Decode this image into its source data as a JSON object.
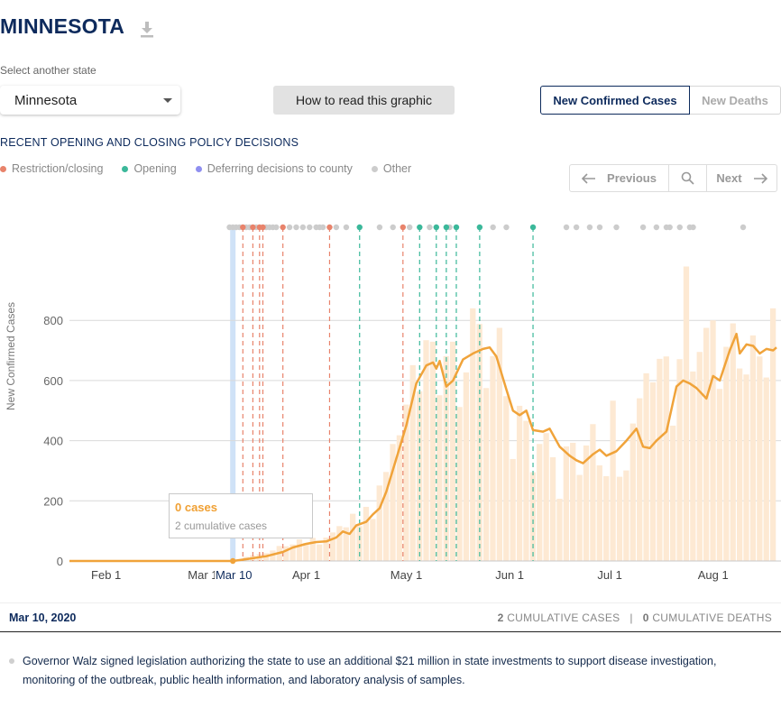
{
  "header": {
    "title": "MINNESOTA",
    "download_icon": "download-icon"
  },
  "state_selector": {
    "label": "Select another state",
    "value": "Minnesota"
  },
  "how_button": {
    "label": "How to read this graphic"
  },
  "toggle": {
    "active": "New Confirmed Cases",
    "inactive": "New Deaths"
  },
  "policy": {
    "heading": "RECENT OPENING AND CLOSING POLICY DECISIONS",
    "legend": [
      {
        "label": "Restriction/closing",
        "color": "#e8836b"
      },
      {
        "label": "Opening",
        "color": "#3bb89a"
      },
      {
        "label": "Deferring decisions to county",
        "color": "#8f8ff0"
      },
      {
        "label": "Other",
        "color": "#cccccc"
      }
    ]
  },
  "pager": {
    "previous": "Previous",
    "next": "Next",
    "icons": [
      "arrow-left-icon",
      "search-icon",
      "arrow-right-icon"
    ]
  },
  "chart_data": {
    "type": "bar",
    "ylabel": "New Confirmed Cases",
    "ylim": [
      0,
      1000
    ],
    "yticks": [
      0,
      200,
      400,
      600,
      800
    ],
    "x_start": "2020-01-21",
    "x_end": "2020-08-20",
    "xticks": [
      {
        "date": "2020-02-01",
        "label": "Feb 1"
      },
      {
        "date": "2020-03-01",
        "label": "Mar 1"
      },
      {
        "date": "2020-04-01",
        "label": "Apr 1"
      },
      {
        "date": "2020-05-01",
        "label": "May 1"
      },
      {
        "date": "2020-06-01",
        "label": "Jun 1"
      },
      {
        "date": "2020-07-01",
        "label": "Jul 1"
      },
      {
        "date": "2020-08-01",
        "label": "Aug 1"
      }
    ],
    "selected": {
      "date": "2020-03-10",
      "label": "Mar 10"
    },
    "colors": {
      "bars": "#fde9d3",
      "line": "#f0a33a",
      "selected_band": "#cfe2f7",
      "grid": "#d9d9d9"
    },
    "daily_cases": [
      {
        "d": "2020-03-06",
        "v": 1
      },
      {
        "d": "2020-03-08",
        "v": 1
      },
      {
        "d": "2020-03-10",
        "v": 0
      },
      {
        "d": "2020-03-12",
        "v": 5
      },
      {
        "d": "2020-03-14",
        "v": 14
      },
      {
        "d": "2020-03-16",
        "v": 19
      },
      {
        "d": "2020-03-18",
        "v": 23
      },
      {
        "d": "2020-03-20",
        "v": 26
      },
      {
        "d": "2020-03-22",
        "v": 35
      },
      {
        "d": "2020-03-24",
        "v": 50
      },
      {
        "d": "2020-03-26",
        "v": 49
      },
      {
        "d": "2020-03-28",
        "v": 55
      },
      {
        "d": "2020-03-30",
        "v": 72
      },
      {
        "d": "2020-04-01",
        "v": 60
      },
      {
        "d": "2020-04-03",
        "v": 77
      },
      {
        "d": "2020-04-05",
        "v": 55
      },
      {
        "d": "2020-04-07",
        "v": 78
      },
      {
        "d": "2020-04-09",
        "v": 95
      },
      {
        "d": "2020-04-11",
        "v": 116
      },
      {
        "d": "2020-04-13",
        "v": 112
      },
      {
        "d": "2020-04-15",
        "v": 157
      },
      {
        "d": "2020-04-17",
        "v": 116
      },
      {
        "d": "2020-04-19",
        "v": 180
      },
      {
        "d": "2020-04-21",
        "v": 140
      },
      {
        "d": "2020-04-23",
        "v": 251
      },
      {
        "d": "2020-04-25",
        "v": 296
      },
      {
        "d": "2020-04-27",
        "v": 389
      },
      {
        "d": "2020-04-29",
        "v": 418
      },
      {
        "d": "2020-05-01",
        "v": 520
      },
      {
        "d": "2020-05-03",
        "v": 651
      },
      {
        "d": "2020-05-05",
        "v": 564
      },
      {
        "d": "2020-05-07",
        "v": 734
      },
      {
        "d": "2020-05-09",
        "v": 729
      },
      {
        "d": "2020-05-11",
        "v": 551
      },
      {
        "d": "2020-05-13",
        "v": 681
      },
      {
        "d": "2020-05-15",
        "v": 729
      },
      {
        "d": "2020-05-17",
        "v": 512
      },
      {
        "d": "2020-05-19",
        "v": 627
      },
      {
        "d": "2020-05-21",
        "v": 840
      },
      {
        "d": "2020-05-23",
        "v": 788
      },
      {
        "d": "2020-05-25",
        "v": 575
      },
      {
        "d": "2020-05-27",
        "v": 681
      },
      {
        "d": "2020-05-29",
        "v": 775
      },
      {
        "d": "2020-05-31",
        "v": 548
      },
      {
        "d": "2020-06-02",
        "v": 339
      },
      {
        "d": "2020-06-04",
        "v": 516
      },
      {
        "d": "2020-06-06",
        "v": 466
      },
      {
        "d": "2020-06-08",
        "v": 295
      },
      {
        "d": "2020-06-10",
        "v": 389
      },
      {
        "d": "2020-06-12",
        "v": 425
      },
      {
        "d": "2020-06-14",
        "v": 345
      },
      {
        "d": "2020-06-16",
        "v": 207
      },
      {
        "d": "2020-06-18",
        "v": 381
      },
      {
        "d": "2020-06-20",
        "v": 393
      },
      {
        "d": "2020-06-22",
        "v": 286
      },
      {
        "d": "2020-06-24",
        "v": 384
      },
      {
        "d": "2020-06-26",
        "v": 455
      },
      {
        "d": "2020-06-28",
        "v": 318
      },
      {
        "d": "2020-06-30",
        "v": 282
      },
      {
        "d": "2020-07-02",
        "v": 533
      },
      {
        "d": "2020-07-04",
        "v": 280
      },
      {
        "d": "2020-07-06",
        "v": 301
      },
      {
        "d": "2020-07-08",
        "v": 457
      },
      {
        "d": "2020-07-10",
        "v": 541
      },
      {
        "d": "2020-07-12",
        "v": 624
      },
      {
        "d": "2020-07-14",
        "v": 594
      },
      {
        "d": "2020-07-16",
        "v": 672
      },
      {
        "d": "2020-07-18",
        "v": 680
      },
      {
        "d": "2020-07-20",
        "v": 450
      },
      {
        "d": "2020-07-22",
        "v": 671
      },
      {
        "d": "2020-07-24",
        "v": 979
      },
      {
        "d": "2020-07-26",
        "v": 630
      },
      {
        "d": "2020-07-28",
        "v": 695
      },
      {
        "d": "2020-07-30",
        "v": 775
      },
      {
        "d": "2020-08-01",
        "v": 800
      },
      {
        "d": "2020-08-03",
        "v": 572
      },
      {
        "d": "2020-08-05",
        "v": 712
      },
      {
        "d": "2020-08-07",
        "v": 790
      },
      {
        "d": "2020-08-09",
        "v": 640
      },
      {
        "d": "2020-08-11",
        "v": 620
      },
      {
        "d": "2020-08-13",
        "v": 750
      },
      {
        "d": "2020-08-15",
        "v": 680
      },
      {
        "d": "2020-08-17",
        "v": 610
      },
      {
        "d": "2020-08-19",
        "v": 840
      }
    ],
    "moving_average": [
      {
        "d": "2020-01-21",
        "v": 0
      },
      {
        "d": "2020-03-10",
        "v": 0
      },
      {
        "d": "2020-03-14",
        "v": 6
      },
      {
        "d": "2020-03-20",
        "v": 16
      },
      {
        "d": "2020-03-25",
        "v": 30
      },
      {
        "d": "2020-03-28",
        "v": 45
      },
      {
        "d": "2020-04-01",
        "v": 57
      },
      {
        "d": "2020-04-04",
        "v": 63
      },
      {
        "d": "2020-04-07",
        "v": 65
      },
      {
        "d": "2020-04-10",
        "v": 78
      },
      {
        "d": "2020-04-12",
        "v": 98
      },
      {
        "d": "2020-04-14",
        "v": 90
      },
      {
        "d": "2020-04-16",
        "v": 118
      },
      {
        "d": "2020-04-19",
        "v": 130
      },
      {
        "d": "2020-04-21",
        "v": 155
      },
      {
        "d": "2020-04-23",
        "v": 175
      },
      {
        "d": "2020-04-25",
        "v": 230
      },
      {
        "d": "2020-04-28",
        "v": 340
      },
      {
        "d": "2020-05-01",
        "v": 450
      },
      {
        "d": "2020-05-04",
        "v": 590
      },
      {
        "d": "2020-05-07",
        "v": 650
      },
      {
        "d": "2020-05-09",
        "v": 660
      },
      {
        "d": "2020-05-10",
        "v": 640
      },
      {
        "d": "2020-05-11",
        "v": 665
      },
      {
        "d": "2020-05-13",
        "v": 580
      },
      {
        "d": "2020-05-15",
        "v": 600
      },
      {
        "d": "2020-05-18",
        "v": 670
      },
      {
        "d": "2020-05-21",
        "v": 690
      },
      {
        "d": "2020-05-24",
        "v": 705
      },
      {
        "d": "2020-05-26",
        "v": 710
      },
      {
        "d": "2020-05-28",
        "v": 680
      },
      {
        "d": "2020-05-31",
        "v": 570
      },
      {
        "d": "2020-06-02",
        "v": 500
      },
      {
        "d": "2020-06-04",
        "v": 485
      },
      {
        "d": "2020-06-06",
        "v": 500
      },
      {
        "d": "2020-06-08",
        "v": 435
      },
      {
        "d": "2020-06-11",
        "v": 430
      },
      {
        "d": "2020-06-13",
        "v": 440
      },
      {
        "d": "2020-06-16",
        "v": 380
      },
      {
        "d": "2020-06-19",
        "v": 350
      },
      {
        "d": "2020-06-21",
        "v": 335
      },
      {
        "d": "2020-06-23",
        "v": 325
      },
      {
        "d": "2020-06-26",
        "v": 355
      },
      {
        "d": "2020-06-28",
        "v": 370
      },
      {
        "d": "2020-06-30",
        "v": 350
      },
      {
        "d": "2020-07-03",
        "v": 365
      },
      {
        "d": "2020-07-06",
        "v": 400
      },
      {
        "d": "2020-07-09",
        "v": 440
      },
      {
        "d": "2020-07-11",
        "v": 380
      },
      {
        "d": "2020-07-13",
        "v": 375
      },
      {
        "d": "2020-07-15",
        "v": 400
      },
      {
        "d": "2020-07-18",
        "v": 430
      },
      {
        "d": "2020-07-21",
        "v": 580
      },
      {
        "d": "2020-07-23",
        "v": 600
      },
      {
        "d": "2020-07-25",
        "v": 590
      },
      {
        "d": "2020-07-27",
        "v": 575
      },
      {
        "d": "2020-07-30",
        "v": 540
      },
      {
        "d": "2020-08-01",
        "v": 615
      },
      {
        "d": "2020-08-03",
        "v": 600
      },
      {
        "d": "2020-08-06",
        "v": 700
      },
      {
        "d": "2020-08-08",
        "v": 755
      },
      {
        "d": "2020-08-09",
        "v": 690
      },
      {
        "d": "2020-08-11",
        "v": 720
      },
      {
        "d": "2020-08-13",
        "v": 715
      },
      {
        "d": "2020-08-15",
        "v": 690
      },
      {
        "d": "2020-08-17",
        "v": 705
      },
      {
        "d": "2020-08-19",
        "v": 700
      },
      {
        "d": "2020-08-20",
        "v": 710
      }
    ],
    "policy_events": [
      {
        "d": "2020-03-13",
        "type": "restriction"
      },
      {
        "d": "2020-03-16",
        "type": "restriction"
      },
      {
        "d": "2020-03-18",
        "type": "restriction"
      },
      {
        "d": "2020-03-19",
        "type": "restriction"
      },
      {
        "d": "2020-03-25",
        "type": "restriction"
      },
      {
        "d": "2020-04-08",
        "type": "restriction"
      },
      {
        "d": "2020-04-17",
        "type": "opening"
      },
      {
        "d": "2020-04-30",
        "type": "restriction"
      },
      {
        "d": "2020-05-05",
        "type": "opening"
      },
      {
        "d": "2020-05-10",
        "type": "opening"
      },
      {
        "d": "2020-05-13",
        "type": "opening"
      },
      {
        "d": "2020-05-16",
        "type": "opening"
      },
      {
        "d": "2020-05-23",
        "type": "opening"
      },
      {
        "d": "2020-06-08",
        "type": "opening"
      }
    ],
    "other_events": [
      "2020-03-09",
      "2020-03-10",
      "2020-03-11",
      "2020-03-12",
      "2020-03-14",
      "2020-03-15",
      "2020-03-17",
      "2020-03-20",
      "2020-03-21",
      "2020-03-22",
      "2020-03-23",
      "2020-03-27",
      "2020-03-29",
      "2020-03-31",
      "2020-04-02",
      "2020-04-04",
      "2020-04-05",
      "2020-04-06",
      "2020-04-10",
      "2020-04-13",
      "2020-04-23",
      "2020-04-27",
      "2020-05-02",
      "2020-05-08",
      "2020-05-14",
      "2020-05-27",
      "2020-05-31",
      "2020-06-18",
      "2020-06-21",
      "2020-06-25",
      "2020-06-28",
      "2020-07-03",
      "2020-07-11",
      "2020-07-15",
      "2020-07-18",
      "2020-07-19",
      "2020-07-22",
      "2020-07-25",
      "2020-07-26",
      "2020-08-10"
    ]
  },
  "tooltip": {
    "main": "0 cases",
    "sub": "2 cumulative cases"
  },
  "info_bar": {
    "date": "Mar 10, 2020",
    "cases_count": "2",
    "cases_label": "CUMULATIVE CASES",
    "separator": "|",
    "deaths_count": "0",
    "deaths_label": "CUMULATIVE DEATHS"
  },
  "note": "Governor Walz signed legislation authorizing the state to use an additional $21 million in state investments to support disease investigation, monitoring of the outbreak, public health information, and laboratory analysis of samples."
}
